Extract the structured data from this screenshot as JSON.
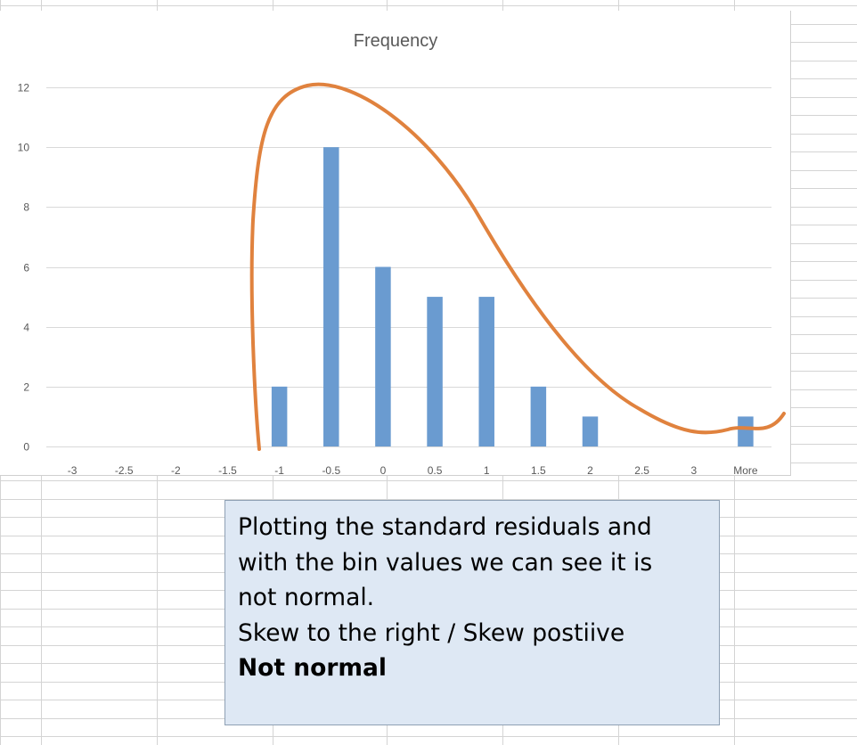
{
  "chart_data": {
    "type": "bar",
    "title": "Frequency",
    "categories": [
      "-3",
      "-2.5",
      "-2",
      "-1.5",
      "-1",
      "-0.5",
      "0",
      "0.5",
      "1",
      "1.5",
      "2",
      "2.5",
      "3",
      "More"
    ],
    "series": [
      {
        "values": [
          0,
          0,
          0,
          0,
          2,
          10,
          6,
          5,
          5,
          2,
          1,
          0,
          0,
          1
        ]
      }
    ],
    "ylim": [
      0,
      12
    ],
    "yticks": [
      0,
      2,
      4,
      6,
      8,
      10,
      12
    ],
    "grid": true,
    "bar_color": "#6a9bd0",
    "annotation_curve": {
      "shape": "hand-drawn skewed curve",
      "color": "#e0823e"
    }
  },
  "note": {
    "lines": [
      "Plotting the standard residuals and",
      "with the bin values we can see it is",
      "not normal.",
      "Skew to the right / Skew postiive"
    ],
    "conclusion": "Not normal"
  },
  "colors": {
    "note_background": "#dee8f4",
    "gridline": "#d9d9d9",
    "sheet_grid": "#d4d4d4"
  }
}
